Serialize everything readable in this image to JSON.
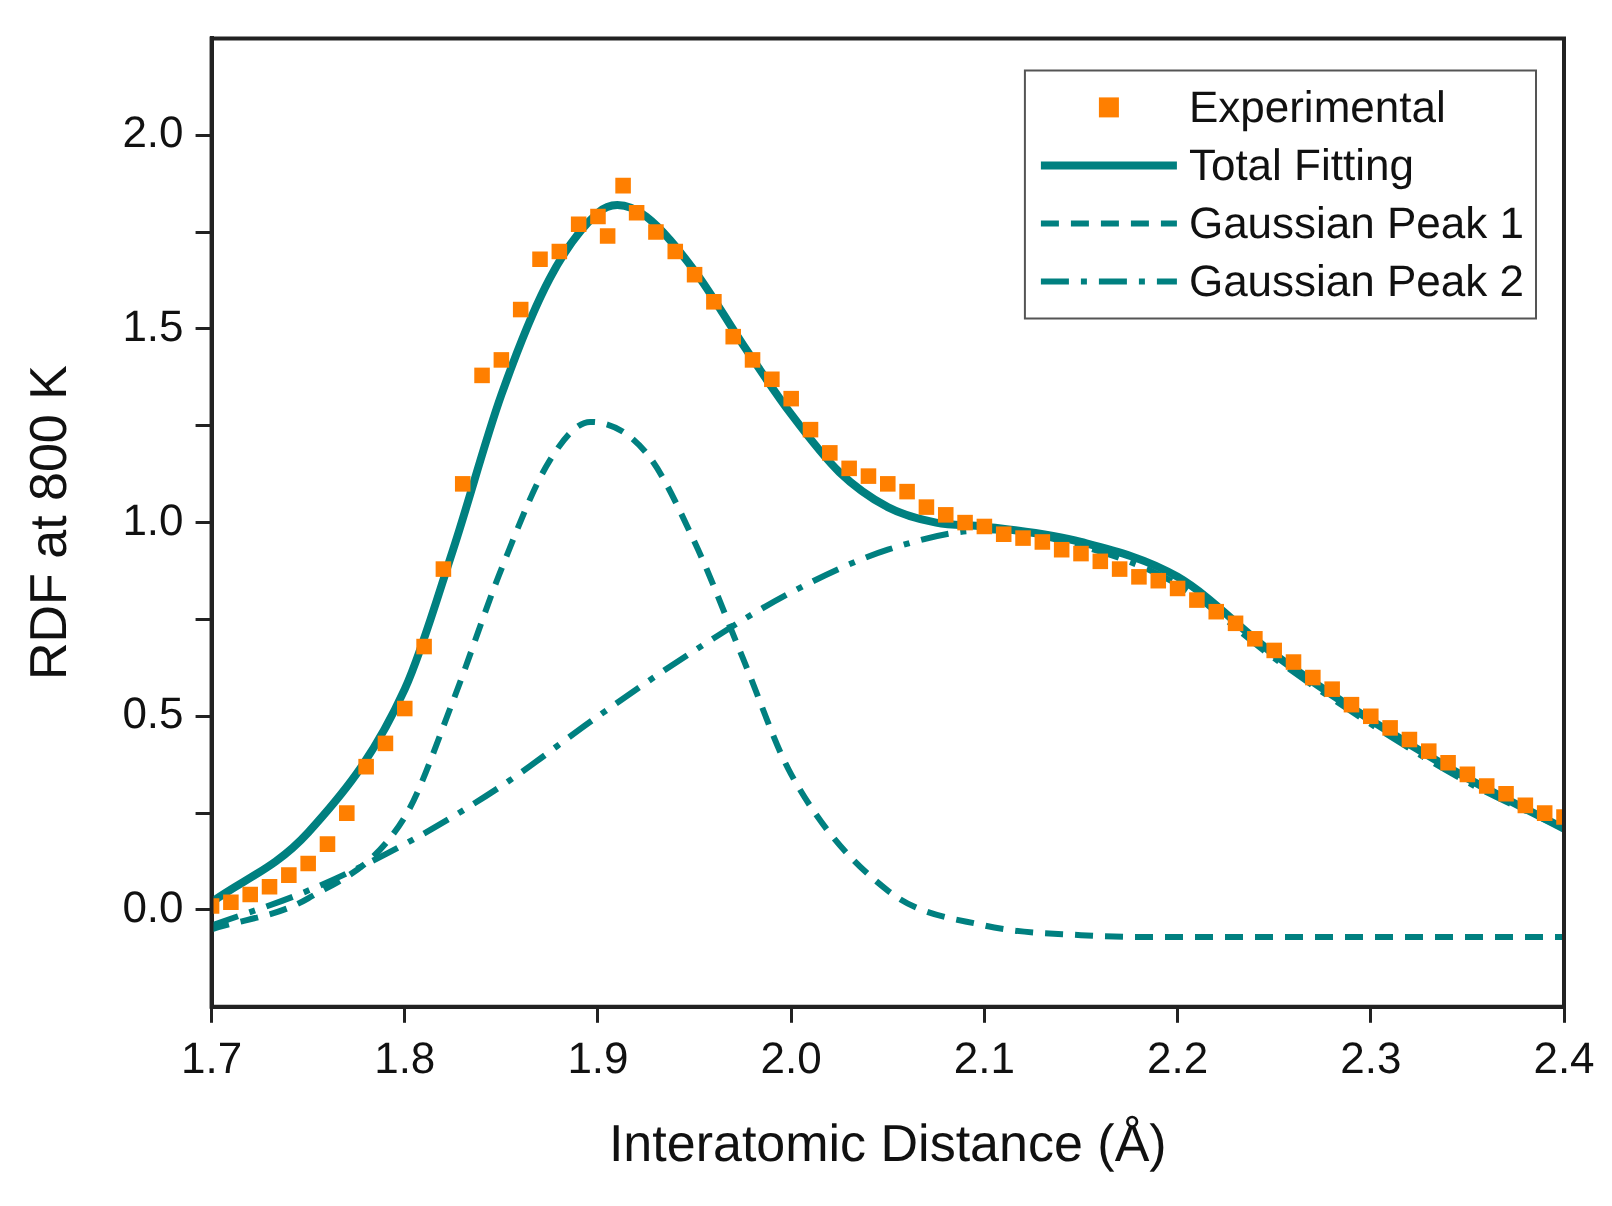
{
  "chart_data": {
    "type": "line",
    "xlabel": "Interatomic Distance (Å)",
    "ylabel": "RDF at 800 K",
    "xlim": [
      1.7,
      2.4
    ],
    "xticks": [
      1.7,
      1.8,
      1.9,
      {
        "value": 2.0,
        "label": "2.0"
      },
      2.1,
      2.2,
      2.3,
      2.4
    ],
    "ylim": [
      -0.25,
      2.25
    ],
    "yticks": [
      {
        "value": 0.0,
        "label": "0.0"
      },
      {
        "value": 0.25,
        "label": null
      },
      0.5,
      {
        "value": 0.75,
        "label": null
      },
      {
        "value": 1.0,
        "label": "1.0"
      },
      {
        "value": 1.25,
        "label": null
      },
      1.5,
      {
        "value": 1.75,
        "label": null
      },
      {
        "value": 2.0,
        "label": "2.0"
      }
    ],
    "grid": false,
    "legend": "top right",
    "series": [
      {
        "name": "Experimental",
        "type": "scatter",
        "marker": "square",
        "color": "#ff7f00",
        "x": [
          1.7,
          1.71,
          1.72,
          1.73,
          1.74,
          1.75,
          1.76,
          1.77,
          1.78,
          1.79,
          1.8,
          1.81,
          1.82,
          1.83,
          1.84,
          1.85,
          1.86,
          1.87,
          1.88,
          1.89,
          1.9,
          1.905,
          1.913,
          1.92,
          1.93,
          1.94,
          1.95,
          1.96,
          1.97,
          1.98,
          1.99,
          2.0,
          2.01,
          2.02,
          2.03,
          2.04,
          2.05,
          2.06,
          2.07,
          2.08,
          2.09,
          2.1,
          2.11,
          2.12,
          2.13,
          2.14,
          2.15,
          2.16,
          2.17,
          2.18,
          2.19,
          2.2,
          2.21,
          2.22,
          2.23,
          2.24,
          2.25,
          2.26,
          2.27,
          2.28,
          2.29,
          2.3,
          2.31,
          2.32,
          2.33,
          2.34,
          2.35,
          2.36,
          2.37,
          2.38,
          2.39,
          2.4
        ],
        "values": [
          0.01,
          0.02,
          0.04,
          0.06,
          0.09,
          0.12,
          0.17,
          0.25,
          0.37,
          0.43,
          0.52,
          0.68,
          0.88,
          1.1,
          1.38,
          1.42,
          1.55,
          1.68,
          1.7,
          1.77,
          1.79,
          1.74,
          1.87,
          1.8,
          1.75,
          1.7,
          1.64,
          1.57,
          1.48,
          1.42,
          1.37,
          1.32,
          1.24,
          1.18,
          1.14,
          1.12,
          1.1,
          1.08,
          1.04,
          1.02,
          1.0,
          0.99,
          0.97,
          0.96,
          0.95,
          0.93,
          0.92,
          0.9,
          0.88,
          0.86,
          0.85,
          0.83,
          0.8,
          0.77,
          0.74,
          0.7,
          0.67,
          0.64,
          0.6,
          0.57,
          0.53,
          0.5,
          0.47,
          0.44,
          0.41,
          0.38,
          0.35,
          0.32,
          0.3,
          0.27,
          0.25,
          0.24
        ]
      },
      {
        "name": "Total Fitting",
        "type": "line",
        "marker": "none",
        "line_style": "solid",
        "color": "#008080",
        "x": [
          1.7,
          1.75,
          1.8,
          1.825,
          1.85,
          1.875,
          1.9,
          1.91,
          1.925,
          1.95,
          1.975,
          2.0,
          2.025,
          2.05,
          2.075,
          2.1,
          2.15,
          2.2,
          2.25,
          2.3,
          2.35,
          2.4
        ],
        "values": [
          0.02,
          0.2,
          0.57,
          0.93,
          1.33,
          1.63,
          1.8,
          1.82,
          1.79,
          1.65,
          1.46,
          1.28,
          1.13,
          1.04,
          1.0,
          0.99,
          0.95,
          0.86,
          0.66,
          0.49,
          0.34,
          0.21
        ]
      },
      {
        "name": "Gaussian Peak 1",
        "type": "line",
        "marker": "none",
        "line_style": "dashed",
        "color": "#008080",
        "x": [
          1.7,
          1.75,
          1.8,
          1.825,
          1.85,
          1.875,
          1.896,
          1.925,
          1.95,
          1.975,
          2.0,
          2.05,
          2.1,
          2.15,
          2.2,
          2.4
        ],
        "values": [
          -0.05,
          0.03,
          0.24,
          0.54,
          0.88,
          1.16,
          1.26,
          1.18,
          0.95,
          0.65,
          0.35,
          0.05,
          -0.04,
          -0.065,
          -0.07,
          -0.07
        ]
      },
      {
        "name": "Gaussian Peak 2",
        "type": "line",
        "marker": "none",
        "line_style": "dashdot",
        "color": "#008080",
        "x": [
          1.7,
          1.75,
          1.8,
          1.85,
          1.9,
          1.95,
          2.0,
          2.05,
          2.1,
          2.15,
          2.2,
          2.25,
          2.3,
          2.35,
          2.4
        ],
        "values": [
          -0.04,
          0.05,
          0.17,
          0.32,
          0.5,
          0.67,
          0.82,
          0.93,
          0.98,
          0.94,
          0.84,
          0.65,
          0.48,
          0.33,
          0.21
        ]
      }
    ]
  }
}
